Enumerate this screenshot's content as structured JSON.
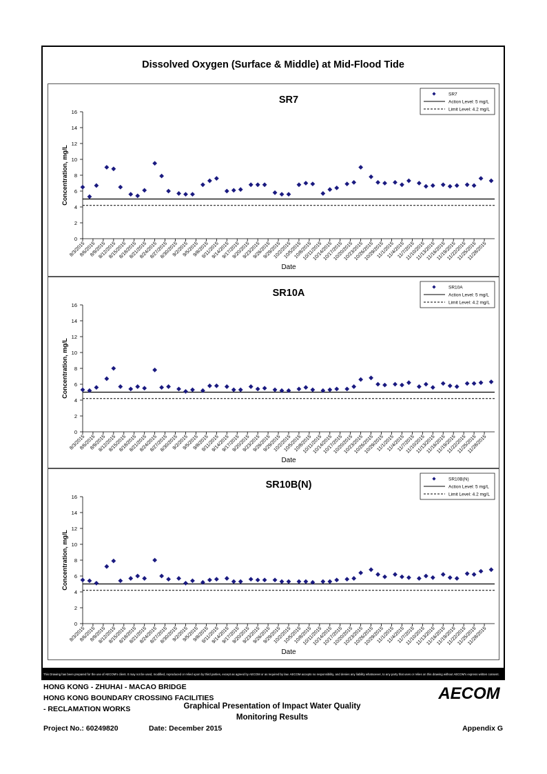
{
  "title": "Dissolved Oxygen (Surface & Middle) at Mid-Flood Tide",
  "chart_data": [
    {
      "type": "scatter",
      "title": "SR7",
      "xlabel": "Date",
      "ylabel": "Concentration, mg/L",
      "ylim": [
        0,
        16
      ],
      "yticks": [
        0,
        2,
        4,
        6,
        8,
        10,
        12,
        14,
        16
      ],
      "x_ticks": [
        "8/3/2015",
        "8/6/2015",
        "8/9/2015",
        "8/12/2015",
        "8/15/2015",
        "8/18/2015",
        "8/21/2015",
        "8/24/2015",
        "8/27/2015",
        "8/30/2015",
        "9/2/2015",
        "9/5/2015",
        "9/8/2015",
        "9/11/2015",
        "9/14/2015",
        "9/17/2015",
        "9/20/2015",
        "9/23/2015",
        "9/26/2015",
        "9/29/2015",
        "10/2/2015",
        "10/5/2015",
        "10/8/2015",
        "10/11/2015",
        "10/14/2015",
        "10/17/2015",
        "10/20/2015",
        "10/23/2015",
        "10/26/2015",
        "10/29/2015",
        "11/1/2015",
        "11/4/2015",
        "11/7/2015",
        "11/10/2015",
        "11/13/2015",
        "11/16/2015",
        "11/19/2015",
        "11/22/2015",
        "11/25/2015",
        "11/28/2015"
      ],
      "legend_position": "top-right",
      "series": [
        {
          "name": "SR7",
          "marker": "diamond",
          "color": "#1a1a80",
          "x": [
            "8/3/2015",
            "8/5/2015",
            "8/7/2015",
            "8/10/2015",
            "8/12/2015",
            "8/14/2015",
            "8/17/2015",
            "8/19/2015",
            "8/21/2015",
            "8/24/2015",
            "8/26/2015",
            "8/28/2015",
            "8/31/2015",
            "9/2/2015",
            "9/4/2015",
            "9/7/2015",
            "9/9/2015",
            "9/11/2015",
            "9/14/2015",
            "9/16/2015",
            "9/18/2015",
            "9/21/2015",
            "9/23/2015",
            "9/25/2015",
            "9/28/2015",
            "9/30/2015",
            "10/2/2015",
            "10/5/2015",
            "10/7/2015",
            "10/9/2015",
            "10/12/2015",
            "10/14/2015",
            "10/16/2015",
            "10/19/2015",
            "10/21/2015",
            "10/23/2015",
            "10/26/2015",
            "10/28/2015",
            "10/30/2015",
            "11/2/2015",
            "11/4/2015",
            "11/6/2015",
            "11/9/2015",
            "11/11/2015",
            "11/13/2015",
            "11/16/2015",
            "11/18/2015",
            "11/20/2015",
            "11/23/2015",
            "11/25/2015",
            "11/27/2015",
            "11/30/2015"
          ],
          "y": [
            6.5,
            5.3,
            6.7,
            9.0,
            8.8,
            6.5,
            5.6,
            5.4,
            6.1,
            9.5,
            7.9,
            6.0,
            5.7,
            5.6,
            5.6,
            6.8,
            7.3,
            7.6,
            6.0,
            6.1,
            6.2,
            6.8,
            6.8,
            6.8,
            5.8,
            5.6,
            5.6,
            6.8,
            7.0,
            6.9,
            5.7,
            6.2,
            6.4,
            6.9,
            7.1,
            9.0,
            7.8,
            7.1,
            7.0,
            7.1,
            6.8,
            7.3,
            7.0,
            6.6,
            6.7,
            6.8,
            6.6,
            6.7,
            6.8,
            6.7,
            7.6,
            7.3
          ]
        },
        {
          "name": "Action Level: 5 mg/L",
          "type": "hline",
          "value": 5,
          "style": "solid"
        },
        {
          "name": "Limit Level: 4.2 mg/L",
          "type": "hline",
          "value": 4.2,
          "style": "dashed"
        }
      ]
    },
    {
      "type": "scatter",
      "title": "SR10A",
      "xlabel": "Date",
      "ylabel": "Concentration, mg/L",
      "ylim": [
        0,
        16
      ],
      "yticks": [
        0,
        2,
        4,
        6,
        8,
        10,
        12,
        14,
        16
      ],
      "x_ticks": [
        "8/3/2015",
        "8/6/2015",
        "8/9/2015",
        "8/12/2015",
        "8/15/2015",
        "8/18/2015",
        "8/21/2015",
        "8/24/2015",
        "8/27/2015",
        "8/30/2015",
        "9/2/2015",
        "9/5/2015",
        "9/8/2015",
        "9/11/2015",
        "9/14/2015",
        "9/17/2015",
        "9/20/2015",
        "9/23/2015",
        "9/26/2015",
        "9/29/2015",
        "10/2/2015",
        "10/5/2015",
        "10/8/2015",
        "10/11/2015",
        "10/14/2015",
        "10/17/2015",
        "10/20/2015",
        "10/23/2015",
        "10/26/2015",
        "10/29/2015",
        "11/1/2015",
        "11/4/2015",
        "11/7/2015",
        "11/10/2015",
        "11/13/2015",
        "11/16/2015",
        "11/19/2015",
        "11/22/2015",
        "11/25/2015",
        "11/28/2015"
      ],
      "legend_position": "top-right",
      "series": [
        {
          "name": "SR10A",
          "marker": "diamond",
          "color": "#1a1a80",
          "x": [
            "8/3/2015",
            "8/5/2015",
            "8/7/2015",
            "8/10/2015",
            "8/12/2015",
            "8/14/2015",
            "8/17/2015",
            "8/19/2015",
            "8/21/2015",
            "8/24/2015",
            "8/26/2015",
            "8/28/2015",
            "8/31/2015",
            "9/2/2015",
            "9/4/2015",
            "9/7/2015",
            "9/9/2015",
            "9/11/2015",
            "9/14/2015",
            "9/16/2015",
            "9/18/2015",
            "9/21/2015",
            "9/23/2015",
            "9/25/2015",
            "9/28/2015",
            "9/30/2015",
            "10/2/2015",
            "10/5/2015",
            "10/7/2015",
            "10/9/2015",
            "10/12/2015",
            "10/14/2015",
            "10/16/2015",
            "10/19/2015",
            "10/21/2015",
            "10/23/2015",
            "10/26/2015",
            "10/28/2015",
            "10/30/2015",
            "11/2/2015",
            "11/4/2015",
            "11/6/2015",
            "11/9/2015",
            "11/11/2015",
            "11/13/2015",
            "11/16/2015",
            "11/18/2015",
            "11/20/2015",
            "11/23/2015",
            "11/25/2015",
            "11/27/2015",
            "11/30/2015"
          ],
          "y": [
            5.3,
            5.2,
            5.6,
            6.7,
            8.0,
            5.7,
            5.4,
            5.7,
            5.5,
            7.8,
            5.6,
            5.7,
            5.4,
            5.1,
            5.3,
            5.2,
            5.8,
            5.8,
            5.7,
            5.3,
            5.3,
            5.7,
            5.4,
            5.5,
            5.3,
            5.2,
            5.2,
            5.4,
            5.6,
            5.3,
            5.2,
            5.3,
            5.4,
            5.4,
            5.7,
            6.6,
            6.8,
            6.0,
            5.9,
            6.0,
            5.9,
            6.2,
            5.7,
            6.0,
            5.6,
            6.1,
            5.8,
            5.7,
            6.1,
            6.1,
            6.2,
            6.3
          ]
        },
        {
          "name": "Action Level: 5 mg/L",
          "type": "hline",
          "value": 5,
          "style": "solid"
        },
        {
          "name": "Limit Level: 4.2 mg/L",
          "type": "hline",
          "value": 4.2,
          "style": "dashed"
        }
      ]
    },
    {
      "type": "scatter",
      "title": "SR10B(N)",
      "xlabel": "Date",
      "ylabel": "Concentration, mg/L",
      "ylim": [
        0,
        16
      ],
      "yticks": [
        0,
        2,
        4,
        6,
        8,
        10,
        12,
        14,
        16
      ],
      "x_ticks": [
        "8/3/2015",
        "8/6/2015",
        "8/9/2015",
        "8/12/2015",
        "8/15/2015",
        "8/18/2015",
        "8/21/2015",
        "8/24/2015",
        "8/27/2015",
        "8/30/2015",
        "9/2/2015",
        "9/5/2015",
        "9/8/2015",
        "9/11/2015",
        "9/14/2015",
        "9/17/2015",
        "9/20/2015",
        "9/23/2015",
        "9/26/2015",
        "9/29/2015",
        "10/2/2015",
        "10/5/2015",
        "10/8/2015",
        "10/11/2015",
        "10/14/2015",
        "10/17/2015",
        "10/20/2015",
        "10/23/2015",
        "10/26/2015",
        "10/29/2015",
        "11/1/2015",
        "11/4/2015",
        "11/7/2015",
        "11/10/2015",
        "11/13/2015",
        "11/16/2015",
        "11/19/2015",
        "11/22/2015",
        "11/25/2015",
        "11/28/2015"
      ],
      "legend_position": "top-right",
      "series": [
        {
          "name": "SR10B(N)",
          "marker": "diamond",
          "color": "#1a1a80",
          "x": [
            "8/3/2015",
            "8/5/2015",
            "8/7/2015",
            "8/10/2015",
            "8/12/2015",
            "8/14/2015",
            "8/17/2015",
            "8/19/2015",
            "8/21/2015",
            "8/24/2015",
            "8/26/2015",
            "8/28/2015",
            "8/31/2015",
            "9/2/2015",
            "9/4/2015",
            "9/7/2015",
            "9/9/2015",
            "9/11/2015",
            "9/14/2015",
            "9/16/2015",
            "9/18/2015",
            "9/21/2015",
            "9/23/2015",
            "9/25/2015",
            "9/28/2015",
            "9/30/2015",
            "10/2/2015",
            "10/5/2015",
            "10/7/2015",
            "10/9/2015",
            "10/12/2015",
            "10/14/2015",
            "10/16/2015",
            "10/19/2015",
            "10/21/2015",
            "10/23/2015",
            "10/26/2015",
            "10/28/2015",
            "10/30/2015",
            "11/2/2015",
            "11/4/2015",
            "11/6/2015",
            "11/9/2015",
            "11/11/2015",
            "11/13/2015",
            "11/16/2015",
            "11/18/2015",
            "11/20/2015",
            "11/23/2015",
            "11/25/2015",
            "11/27/2015",
            "11/30/2015"
          ],
          "y": [
            5.5,
            5.4,
            5.1,
            7.2,
            7.9,
            5.4,
            5.7,
            6.0,
            5.7,
            8.0,
            6.0,
            5.6,
            5.7,
            5.1,
            5.4,
            5.2,
            5.5,
            5.6,
            5.7,
            5.3,
            5.3,
            5.6,
            5.5,
            5.5,
            5.5,
            5.3,
            5.3,
            5.3,
            5.3,
            5.2,
            5.3,
            5.3,
            5.5,
            5.6,
            5.7,
            6.4,
            6.8,
            6.2,
            5.9,
            6.2,
            5.9,
            5.8,
            5.7,
            6.0,
            5.8,
            6.2,
            5.8,
            5.7,
            6.3,
            6.2,
            6.6,
            6.8
          ]
        },
        {
          "name": "Action Level: 5 mg/L",
          "type": "hline",
          "value": 5,
          "style": "solid"
        },
        {
          "name": "Limit Level: 4.2 mg/L",
          "type": "hline",
          "value": 4.2,
          "style": "dashed"
        }
      ]
    }
  ],
  "disclaimer": "This Drawing has been prepared for the use of AECOM's client. It may not be used, modified, reproduced or relied upon by third parties, except as agreed by AECOM or as required by law. AECOM accepts no responsibility, and denies any liability whatsoever, to any party that uses or relies on this drawing without AECOM's express written consent.",
  "footer": {
    "project_line1": "HONG KONG - ZHUHAI - MACAO BRIDGE",
    "project_line2": "HONG KONG BOUNDARY CROSSING FACILITIES",
    "project_line3": "- RECLAMATION WORKS",
    "drawing_title_line1": "Graphical Presentation of Impact Water Quality",
    "drawing_title_line2": "Monitoring Results",
    "project_no": "Project No.: 60249820",
    "date": "Date: December 2015",
    "appendix": "Appendix G",
    "logo": "AECOM"
  }
}
